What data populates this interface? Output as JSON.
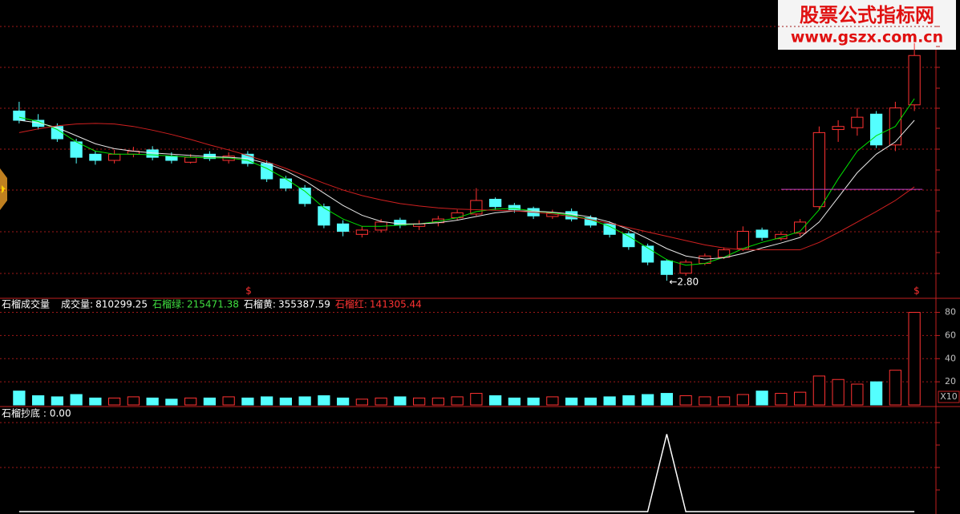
{
  "watermark": {
    "title": "股票公式指标网",
    "url": "www.gszx.com.cn"
  },
  "chart_data": [
    {
      "type": "candlestick",
      "open": [
        5.55,
        5.4,
        5.3,
        5.05,
        4.85,
        4.75,
        4.85,
        4.92,
        4.82,
        4.72,
        4.85,
        4.75,
        4.85,
        4.7,
        4.45,
        4.3,
        4.0,
        3.72,
        3.55,
        3.62,
        3.78,
        3.68,
        3.74,
        3.82,
        3.88,
        4.12,
        4.02,
        3.97,
        3.84,
        3.92,
        3.82,
        3.72,
        3.56,
        3.36,
        3.12,
        2.92,
        3.08,
        3.18,
        3.32,
        3.62,
        3.48,
        3.57,
        4.0,
        5.25,
        5.28,
        5.5,
        5.0,
        5.65
      ],
      "high": [
        5.7,
        5.5,
        5.35,
        5.1,
        4.9,
        4.92,
        4.97,
        4.98,
        4.88,
        4.85,
        4.9,
        4.88,
        4.9,
        4.75,
        4.5,
        4.35,
        4.05,
        3.78,
        3.68,
        3.8,
        3.82,
        3.78,
        3.85,
        3.95,
        4.3,
        4.15,
        4.06,
        4.0,
        3.95,
        3.97,
        3.86,
        3.76,
        3.6,
        3.4,
        3.15,
        3.14,
        3.24,
        3.34,
        3.68,
        3.66,
        3.6,
        3.8,
        5.3,
        5.4,
        5.6,
        5.55,
        5.7,
        6.65
      ],
      "low": [
        5.35,
        5.25,
        5.05,
        4.7,
        4.68,
        4.7,
        4.8,
        4.75,
        4.7,
        4.7,
        4.74,
        4.7,
        4.65,
        4.4,
        4.25,
        4.0,
        3.65,
        3.52,
        3.5,
        3.58,
        3.65,
        3.62,
        3.68,
        3.78,
        3.85,
        3.95,
        3.9,
        3.8,
        3.8,
        3.76,
        3.66,
        3.5,
        3.3,
        3.05,
        2.8,
        2.88,
        3.05,
        3.15,
        3.28,
        3.45,
        3.45,
        3.52,
        3.95,
        5.05,
        5.15,
        4.95,
        4.9,
        5.55
      ],
      "close": [
        5.4,
        5.3,
        5.1,
        4.8,
        4.75,
        4.85,
        4.9,
        4.8,
        4.75,
        4.8,
        4.78,
        4.82,
        4.7,
        4.45,
        4.3,
        4.05,
        3.7,
        3.6,
        3.62,
        3.75,
        3.7,
        3.72,
        3.8,
        3.9,
        4.1,
        4.0,
        3.95,
        3.85,
        3.9,
        3.8,
        3.7,
        3.55,
        3.35,
        3.1,
        2.9,
        3.1,
        3.2,
        3.3,
        3.6,
        3.5,
        3.55,
        3.75,
        5.2,
        5.3,
        5.45,
        5.0,
        5.6,
        6.45
      ],
      "up_color": "#ff3232",
      "down_color": "#54ffff",
      "lines": [
        {
          "color": "#00e000",
          "values": [
            5.45,
            5.38,
            5.25,
            5.05,
            4.9,
            4.85,
            4.85,
            4.84,
            4.82,
            4.8,
            4.79,
            4.79,
            4.75,
            4.62,
            4.45,
            4.25,
            3.98,
            3.8,
            3.68,
            3.68,
            3.7,
            3.72,
            3.76,
            3.82,
            3.92,
            3.96,
            3.97,
            3.93,
            3.9,
            3.86,
            3.79,
            3.68,
            3.52,
            3.33,
            3.14,
            3.05,
            3.08,
            3.18,
            3.32,
            3.42,
            3.5,
            3.6,
            3.95,
            4.45,
            4.9,
            5.15,
            5.3,
            5.75
          ]
        },
        {
          "color": "#e8e8e8",
          "values": [
            5.4,
            5.36,
            5.28,
            5.15,
            5.02,
            4.94,
            4.9,
            4.87,
            4.85,
            4.83,
            4.81,
            4.8,
            4.78,
            4.7,
            4.58,
            4.42,
            4.22,
            4.02,
            3.86,
            3.76,
            3.72,
            3.72,
            3.74,
            3.78,
            3.84,
            3.9,
            3.93,
            3.93,
            3.91,
            3.88,
            3.83,
            3.75,
            3.63,
            3.48,
            3.32,
            3.2,
            3.15,
            3.17,
            3.24,
            3.33,
            3.41,
            3.5,
            3.75,
            4.15,
            4.55,
            4.85,
            5.05,
            5.4
          ]
        },
        {
          "color": "#d02020",
          "values": [
            5.2,
            5.26,
            5.31,
            5.34,
            5.35,
            5.34,
            5.3,
            5.24,
            5.17,
            5.09,
            5.0,
            4.92,
            4.83,
            4.73,
            4.62,
            4.5,
            4.38,
            4.27,
            4.18,
            4.11,
            4.05,
            4.01,
            3.98,
            3.96,
            3.95,
            3.94,
            3.93,
            3.91,
            3.88,
            3.84,
            3.79,
            3.73,
            3.66,
            3.59,
            3.52,
            3.45,
            3.38,
            3.33,
            3.3,
            3.3,
            3.3,
            3.3,
            3.42,
            3.58,
            3.75,
            3.92,
            4.1,
            4.32
          ]
        }
      ],
      "level": {
        "value": 4.28,
        "color": "#c040c0"
      },
      "annotation": {
        "value": 2.8,
        "label": "←2.80"
      },
      "signal_marks": [
        "$",
        "$"
      ],
      "ylim": [
        2.54,
        6.96
      ]
    },
    {
      "type": "bar",
      "title": "石榴成交量",
      "readouts": [
        {
          "label": "成交量:",
          "value": 810299.25,
          "color": "#ffffff"
        },
        {
          "label": "石榴绿:",
          "value": 215471.38,
          "color": "#40e040"
        },
        {
          "label": "石榴黄:",
          "value": 355387.59,
          "color": "#ffffff"
        },
        {
          "label": "石榴红:",
          "value": 141305.44,
          "color": "#ff3232"
        }
      ],
      "values": [
        12,
        8,
        7,
        9,
        6,
        6,
        7,
        6,
        5,
        6,
        6,
        7,
        6,
        7,
        6,
        7,
        8,
        6,
        5,
        6,
        7,
        6,
        6,
        7,
        10,
        8,
        6,
        6,
        7,
        6,
        6,
        7,
        8,
        9,
        10,
        8,
        7,
        7,
        9,
        12,
        10,
        11,
        25,
        22,
        18,
        20,
        30,
        80
      ],
      "ylim": [
        0,
        88
      ],
      "yticks": [
        20,
        40,
        60,
        80
      ],
      "unit_label": "X10"
    },
    {
      "type": "line",
      "title": "石榴抄底 :",
      "readout": {
        "value": 0,
        "label": "0.00"
      },
      "values": [
        0,
        0,
        0,
        0,
        0,
        0,
        0,
        0,
        0,
        0,
        0,
        0,
        0,
        0,
        0,
        0,
        0,
        0,
        0,
        0,
        0,
        0,
        0,
        0,
        0,
        0,
        0,
        0,
        0,
        0,
        0,
        0,
        0,
        0,
        1,
        0,
        0,
        0,
        0,
        0,
        0,
        0,
        0,
        0,
        0,
        0,
        0,
        0
      ],
      "ylim": [
        0,
        1.15
      ],
      "color": "#ffffff"
    }
  ]
}
